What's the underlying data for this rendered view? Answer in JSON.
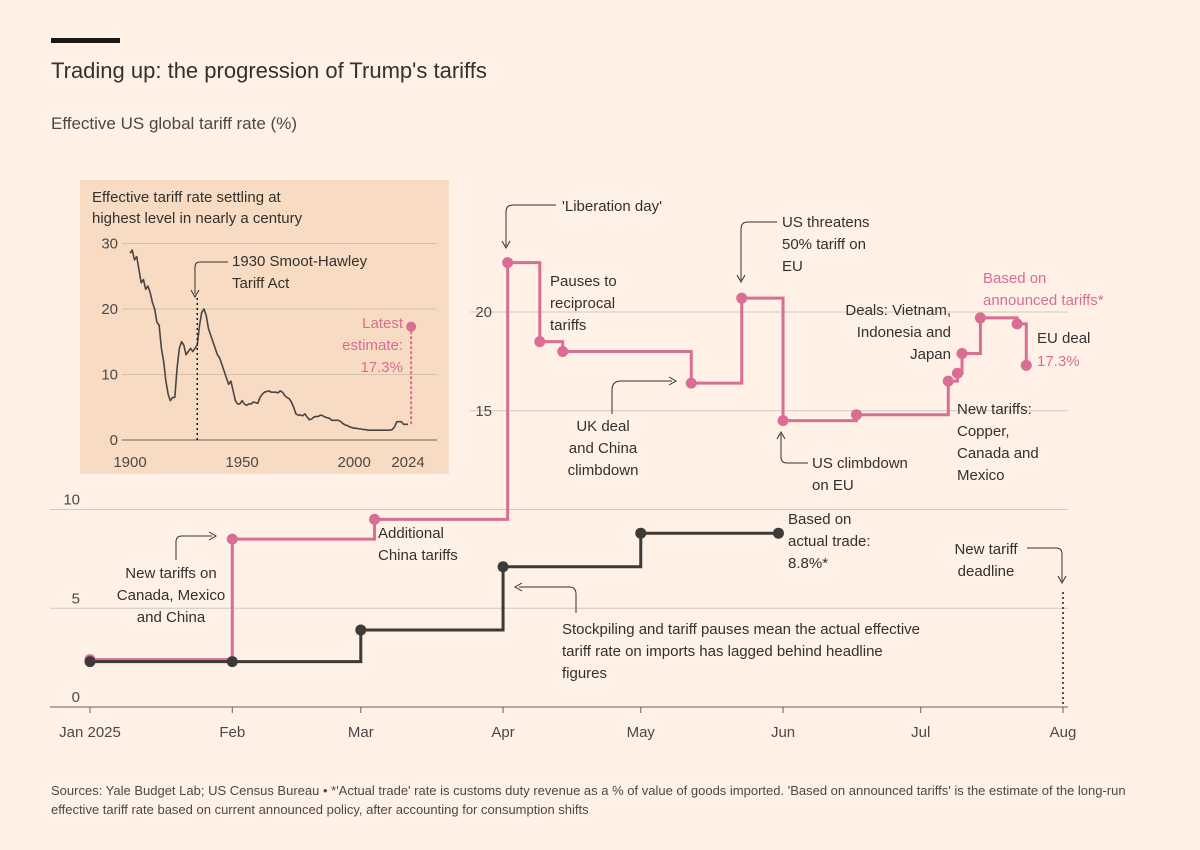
{
  "header": {
    "title": "Trading up: the progression of Trump's tariffs",
    "subtitle": "Effective US global tariff rate (%)"
  },
  "footer": {
    "source": "Sources: Yale Budget Lab; US Census Bureau • *'Actual trade' rate is customs duty revenue as a % of value of goods imported. 'Based on announced tariffs' is the estimate of the long-run effective tariff rate based on current announced policy, after accounting for consumption shifts"
  },
  "colors": {
    "background": "#fff1e5",
    "pink": "#d96d94",
    "dark": "#3d3a38",
    "inset_bg": "#f7dcc3",
    "grid": "#d4c8bd"
  },
  "chart_data": [
    {
      "type": "line",
      "title": "",
      "ylabel": "Effective US global tariff rate (%)",
      "x_ticks": [
        "Jan 2025",
        "Feb",
        "Mar",
        "Apr",
        "May",
        "Jun",
        "Jul",
        "Aug"
      ],
      "y_ticks_left": [
        "0",
        "5",
        "10"
      ],
      "y_ticks_right": [
        "15",
        "20"
      ],
      "ylim": [
        0,
        23
      ],
      "series": [
        {
          "name": "Based on announced tariffs*",
          "color": "#d96d94",
          "step": true,
          "points": [
            [
              "2025-01-01",
              2.4
            ],
            [
              "2025-02-01",
              8.5
            ],
            [
              "2025-03-04",
              9.5
            ],
            [
              "2025-04-02",
              22.5
            ],
            [
              "2025-04-09",
              18.5
            ],
            [
              "2025-04-14",
              18.0
            ],
            [
              "2025-05-12",
              16.4
            ],
            [
              "2025-05-23",
              20.7
            ],
            [
              "2025-06-01",
              14.5
            ],
            [
              "2025-06-17",
              14.8
            ],
            [
              "2025-07-07",
              16.5
            ],
            [
              "2025-07-09",
              16.9
            ],
            [
              "2025-07-10",
              17.9
            ],
            [
              "2025-07-14",
              19.7
            ],
            [
              "2025-07-22",
              19.4
            ],
            [
              "2025-07-24",
              17.3
            ]
          ],
          "markers": [
            [
              "2025-01-01",
              2.4
            ],
            [
              "2025-02-01",
              8.5
            ],
            [
              "2025-03-04",
              9.5
            ],
            [
              "2025-04-02",
              22.5
            ],
            [
              "2025-04-09",
              18.5
            ],
            [
              "2025-04-14",
              18.0
            ],
            [
              "2025-05-12",
              16.4
            ],
            [
              "2025-05-23",
              20.7
            ],
            [
              "2025-06-01",
              14.5
            ],
            [
              "2025-06-17",
              14.8
            ],
            [
              "2025-07-07",
              16.5
            ],
            [
              "2025-07-09",
              16.9
            ],
            [
              "2025-07-10",
              17.9
            ],
            [
              "2025-07-14",
              19.7
            ],
            [
              "2025-07-22",
              19.4
            ],
            [
              "2025-07-24",
              17.3
            ]
          ]
        },
        {
          "name": "actual trade",
          "color": "#3d3a38",
          "step": true,
          "points": [
            [
              "2025-01-01",
              2.3
            ],
            [
              "2025-02-01",
              2.3
            ],
            [
              "2025-03-01",
              3.9
            ],
            [
              "2025-04-01",
              7.1
            ],
            [
              "2025-05-01",
              8.8
            ],
            [
              "2025-05-31",
              8.8
            ]
          ],
          "markers": [
            [
              "2025-01-01",
              2.3
            ],
            [
              "2025-02-01",
              2.3
            ],
            [
              "2025-03-01",
              3.9
            ],
            [
              "2025-04-01",
              7.1
            ],
            [
              "2025-05-01",
              8.8
            ],
            [
              "2025-05-31",
              8.8
            ]
          ]
        }
      ],
      "vline": {
        "date": "2025-08-01",
        "label": "New tariff deadline"
      },
      "annotations": {
        "liberation": "'Liberation day'",
        "pauses": [
          "Pauses to",
          "reciprocal",
          "tariffs"
        ],
        "uk": [
          "UK deal",
          "and China",
          "climbdown"
        ],
        "threat": [
          "US threatens",
          "50% tariff on",
          "EU"
        ],
        "climbdown": [
          "US climbdown",
          "on EU"
        ],
        "deals": [
          "Deals: Vietnam,",
          "Indonesia and",
          "Japan"
        ],
        "announced": [
          "Based on",
          "announced tariffs*"
        ],
        "eu": "EU deal",
        "eu_value": "17.3%",
        "new_tariffs": [
          "New tariffs:",
          "Copper,",
          "Canada and",
          "Mexico"
        ],
        "new_tariffs_jan": [
          "New tariffs on",
          "Canada, Mexico",
          "and China"
        ],
        "china": [
          "Additional",
          "China tariffs"
        ],
        "actual": [
          "Based on",
          "actual trade:",
          "8.8%*"
        ],
        "stockpile": [
          "Stockpiling and tariff pauses mean the actual effective",
          "tariff rate on imports has lagged behind headline",
          "figures"
        ],
        "deadline": [
          "New tariff",
          "deadline"
        ]
      }
    },
    {
      "type": "line",
      "title": "Effective tariff rate settling at highest level in nearly a century",
      "x_ticks": [
        "1900",
        "1950",
        "2000",
        "2024"
      ],
      "y_ticks": [
        "30",
        "20",
        "10",
        "0"
      ],
      "ylim": [
        0,
        30
      ],
      "xlim": [
        1900,
        2025
      ],
      "vline": {
        "year": 1930,
        "label": [
          "1930 Smoot-Hawley",
          "Tariff Act"
        ]
      },
      "latest": {
        "year": 2025,
        "value": 17.3,
        "label": [
          "Latest",
          "estimate:",
          "17.3%"
        ]
      },
      "series": [
        {
          "name": "",
          "points": [
            [
              1900,
              28.5
            ],
            [
              1901,
              29
            ],
            [
              1902,
              27.5
            ],
            [
              1903,
              28
            ],
            [
              1904,
              26
            ],
            [
              1905,
              24
            ],
            [
              1906,
              24.5
            ],
            [
              1907,
              23
            ],
            [
              1908,
              23.5
            ],
            [
              1909,
              22.5
            ],
            [
              1910,
              21
            ],
            [
              1911,
              20
            ],
            [
              1912,
              18
            ],
            [
              1913,
              17.5
            ],
            [
              1914,
              14
            ],
            [
              1915,
              12
            ],
            [
              1916,
              9
            ],
            [
              1917,
              7
            ],
            [
              1918,
              6
            ],
            [
              1919,
              6.5
            ],
            [
              1920,
              6.5
            ],
            [
              1921,
              11
            ],
            [
              1922,
              14
            ],
            [
              1923,
              15
            ],
            [
              1924,
              14.5
            ],
            [
              1925,
              13
            ],
            [
              1926,
              13.5
            ],
            [
              1927,
              14
            ],
            [
              1928,
              13.5
            ],
            [
              1929,
              14
            ],
            [
              1930,
              14.5
            ],
            [
              1931,
              17.5
            ],
            [
              1932,
              19.5
            ],
            [
              1933,
              20
            ],
            [
              1934,
              19
            ],
            [
              1935,
              17
            ],
            [
              1936,
              16
            ],
            [
              1937,
              15
            ],
            [
              1938,
              14
            ],
            [
              1939,
              13
            ],
            [
              1940,
              12.5
            ],
            [
              1941,
              11.5
            ],
            [
              1942,
              10.5
            ],
            [
              1943,
              9.5
            ],
            [
              1944,
              8.5
            ],
            [
              1945,
              9
            ],
            [
              1946,
              7.5
            ],
            [
              1947,
              6
            ],
            [
              1948,
              5.5
            ],
            [
              1949,
              5.5
            ],
            [
              1950,
              6
            ],
            [
              1951,
              5.5
            ],
            [
              1952,
              5.3
            ],
            [
              1953,
              5.5
            ],
            [
              1954,
              5.5
            ],
            [
              1955,
              5.8
            ],
            [
              1956,
              5.7
            ],
            [
              1957,
              5.6
            ],
            [
              1958,
              6.5
            ],
            [
              1959,
              7
            ],
            [
              1960,
              7.3
            ],
            [
              1961,
              7.4
            ],
            [
              1962,
              7.5
            ],
            [
              1963,
              7.3
            ],
            [
              1964,
              7.3
            ],
            [
              1965,
              7.3
            ],
            [
              1966,
              7.2
            ],
            [
              1967,
              7.5
            ],
            [
              1968,
              7.3
            ],
            [
              1969,
              6.8
            ],
            [
              1970,
              6.5
            ],
            [
              1971,
              6.3
            ],
            [
              1972,
              5.8
            ],
            [
              1973,
              5
            ],
            [
              1974,
              4
            ],
            [
              1975,
              3.8
            ],
            [
              1976,
              3.8
            ],
            [
              1977,
              3.7
            ],
            [
              1978,
              4
            ],
            [
              1979,
              3.5
            ],
            [
              1980,
              3.1
            ],
            [
              1981,
              3.2
            ],
            [
              1982,
              3.5
            ],
            [
              1983,
              3.6
            ],
            [
              1984,
              3.6
            ],
            [
              1985,
              3.8
            ],
            [
              1986,
              3.7
            ],
            [
              1987,
              3.5
            ],
            [
              1988,
              3.4
            ],
            [
              1989,
              3.3
            ],
            [
              1990,
              3
            ],
            [
              1991,
              3
            ],
            [
              1992,
              3
            ],
            [
              1993,
              3
            ],
            [
              1994,
              2.8
            ],
            [
              1995,
              2.5
            ],
            [
              1996,
              2.3
            ],
            [
              1997,
              2.2
            ],
            [
              1998,
              2
            ],
            [
              1999,
              1.9
            ],
            [
              2000,
              1.8
            ],
            [
              2001,
              1.8
            ],
            [
              2002,
              1.7
            ],
            [
              2003,
              1.7
            ],
            [
              2004,
              1.6
            ],
            [
              2005,
              1.6
            ],
            [
              2006,
              1.5
            ],
            [
              2007,
              1.5
            ],
            [
              2008,
              1.5
            ],
            [
              2009,
              1.5
            ],
            [
              2010,
              1.5
            ],
            [
              2011,
              1.5
            ],
            [
              2012,
              1.5
            ],
            [
              2013,
              1.5
            ],
            [
              2014,
              1.5
            ],
            [
              2015,
              1.5
            ],
            [
              2016,
              1.5
            ],
            [
              2017,
              1.6
            ],
            [
              2018,
              2
            ],
            [
              2019,
              2.8
            ],
            [
              2020,
              2.8
            ],
            [
              2021,
              2.8
            ],
            [
              2022,
              2.4
            ],
            [
              2023,
              2.4
            ],
            [
              2024,
              2.4
            ]
          ]
        }
      ]
    }
  ]
}
